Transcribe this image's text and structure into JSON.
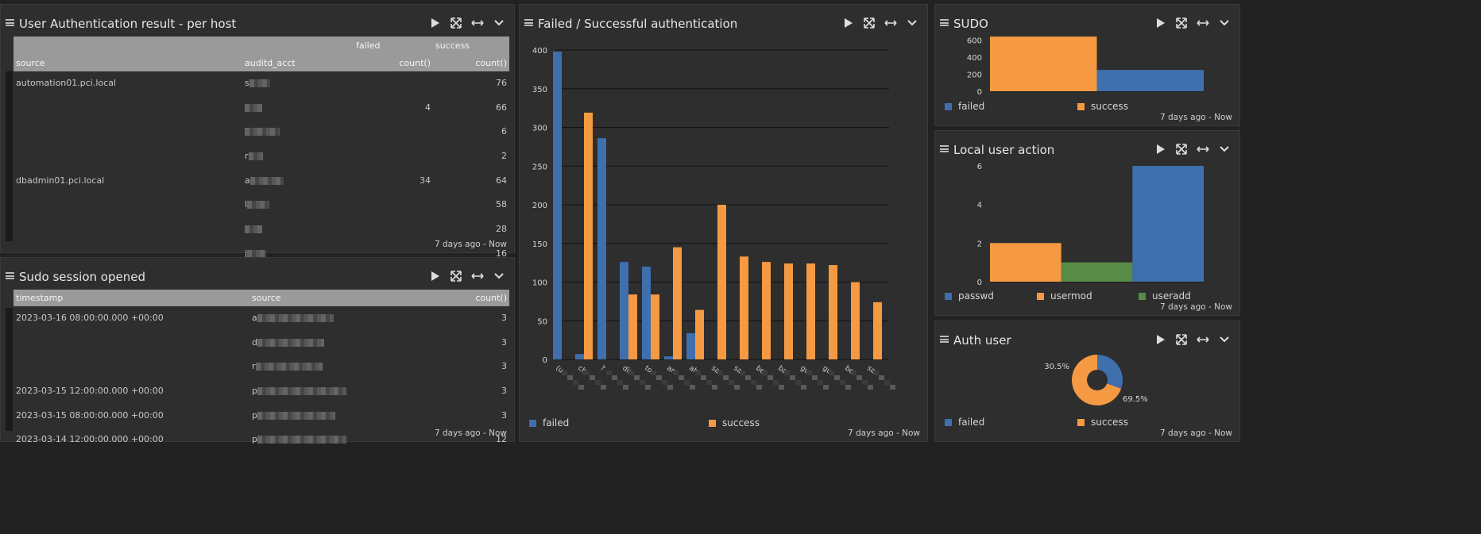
{
  "colors": {
    "failed": "#3f6fad",
    "success": "#f59a42",
    "green": "#588c46",
    "panel": "#2e2e2e",
    "header": "#9a9a9a",
    "grid": "#111111"
  },
  "icons": [
    "menu-icon",
    "play-icon",
    "fullscreen-icon",
    "expand-width-icon",
    "chevron-down-icon"
  ],
  "panels": {
    "auth_per_host": {
      "title": "User Authentication result - per host",
      "footer": "7 days ago - Now",
      "group_headers": [
        "failed",
        "success"
      ],
      "columns": [
        "source",
        "auditd_acct",
        "count()",
        "count()"
      ],
      "rows": [
        {
          "source": "automation01.pci.local",
          "acct": "s",
          "failed": "",
          "success": "76"
        },
        {
          "source": "",
          "acct": "",
          "failed": "4",
          "success": "66"
        },
        {
          "source": "",
          "acct": "",
          "failed": "",
          "success": "6"
        },
        {
          "source": "",
          "acct": "r",
          "failed": "",
          "success": "2"
        },
        {
          "source": "dbadmin01.pci.local",
          "acct": "a",
          "failed": "34",
          "success": "64"
        },
        {
          "source": "",
          "acct": "l",
          "failed": "",
          "success": "58"
        },
        {
          "source": "",
          "acct": "",
          "failed": "",
          "success": "28"
        },
        {
          "source": "",
          "acct": "j",
          "failed": "",
          "success": "16"
        }
      ]
    },
    "sudo_session": {
      "title": "Sudo session opened",
      "footer": "7 days ago - Now",
      "columns": [
        "timestamp",
        "source",
        "count()"
      ],
      "rows": [
        {
          "timestamp": "2023-03-16 08:00:00.000 +00:00",
          "source": "a",
          "count": "3"
        },
        {
          "timestamp": "",
          "source": "d",
          "count": "3"
        },
        {
          "timestamp": "",
          "source": "r",
          "count": "3"
        },
        {
          "timestamp": "2023-03-15 12:00:00.000 +00:00",
          "source": "p",
          "count": "3"
        },
        {
          "timestamp": "2023-03-15 08:00:00.000 +00:00",
          "source": "p",
          "count": "3"
        },
        {
          "timestamp": "2023-03-14 12:00:00.000 +00:00",
          "source": "p",
          "count": "12"
        }
      ]
    },
    "failed_success": {
      "title": "Failed / Successful authentication",
      "footer": "7 days ago - Now"
    },
    "sudo": {
      "title": "SUDO",
      "footer": "7 days ago - Now"
    },
    "local_user_action": {
      "title": "Local user action",
      "footer": "7 days ago - Now"
    },
    "auth_user": {
      "title": "Auth user",
      "footer": "7 days ago - Now"
    }
  },
  "chart_data": [
    {
      "id": "failed-successful-authentication",
      "type": "bar",
      "title": "Failed / Successful authentication",
      "ylim": [
        0,
        400
      ],
      "yticks": [
        0,
        50,
        100,
        150,
        200,
        250,
        300,
        350,
        400
      ],
      "categories": [
        "(u",
        "ch",
        "?",
        "dis",
        "to",
        "an",
        "ah",
        "sa",
        "sa",
        "be",
        "ba",
        "gu",
        "gu",
        "be",
        "sa"
      ],
      "series": [
        {
          "name": "failed",
          "values": [
            398,
            7,
            286,
            126,
            120,
            4,
            34,
            0,
            0,
            0,
            0,
            0,
            0,
            0,
            0
          ]
        },
        {
          "name": "success",
          "values": [
            0,
            319,
            0,
            84,
            84,
            145,
            64,
            200,
            133,
            126,
            124,
            124,
            122,
            100,
            74
          ]
        }
      ],
      "legend": "bottom"
    },
    {
      "id": "sudo",
      "type": "bar",
      "title": "SUDO",
      "ylim": [
        0,
        650
      ],
      "yticks": [
        0,
        200,
        400,
        600
      ],
      "series": [
        {
          "name": "failed",
          "values": [
            250
          ]
        },
        {
          "name": "success",
          "values": [
            640
          ]
        }
      ],
      "legend": "bottom"
    },
    {
      "id": "local-user-action",
      "type": "bar",
      "title": "Local user action",
      "ylim": [
        0,
        6
      ],
      "yticks": [
        0,
        2,
        4,
        6
      ],
      "series": [
        {
          "name": "passwd",
          "values": [
            6
          ]
        },
        {
          "name": "usermod",
          "values": [
            2
          ]
        },
        {
          "name": "useradd",
          "values": [
            1
          ]
        }
      ],
      "legend": "bottom"
    },
    {
      "id": "auth-user",
      "type": "pie",
      "title": "Auth user",
      "slices": [
        {
          "name": "failed",
          "value": 30.5,
          "label": "30.5%"
        },
        {
          "name": "success",
          "value": 69.5,
          "label": "69.5%"
        }
      ],
      "legend": "bottom"
    }
  ]
}
